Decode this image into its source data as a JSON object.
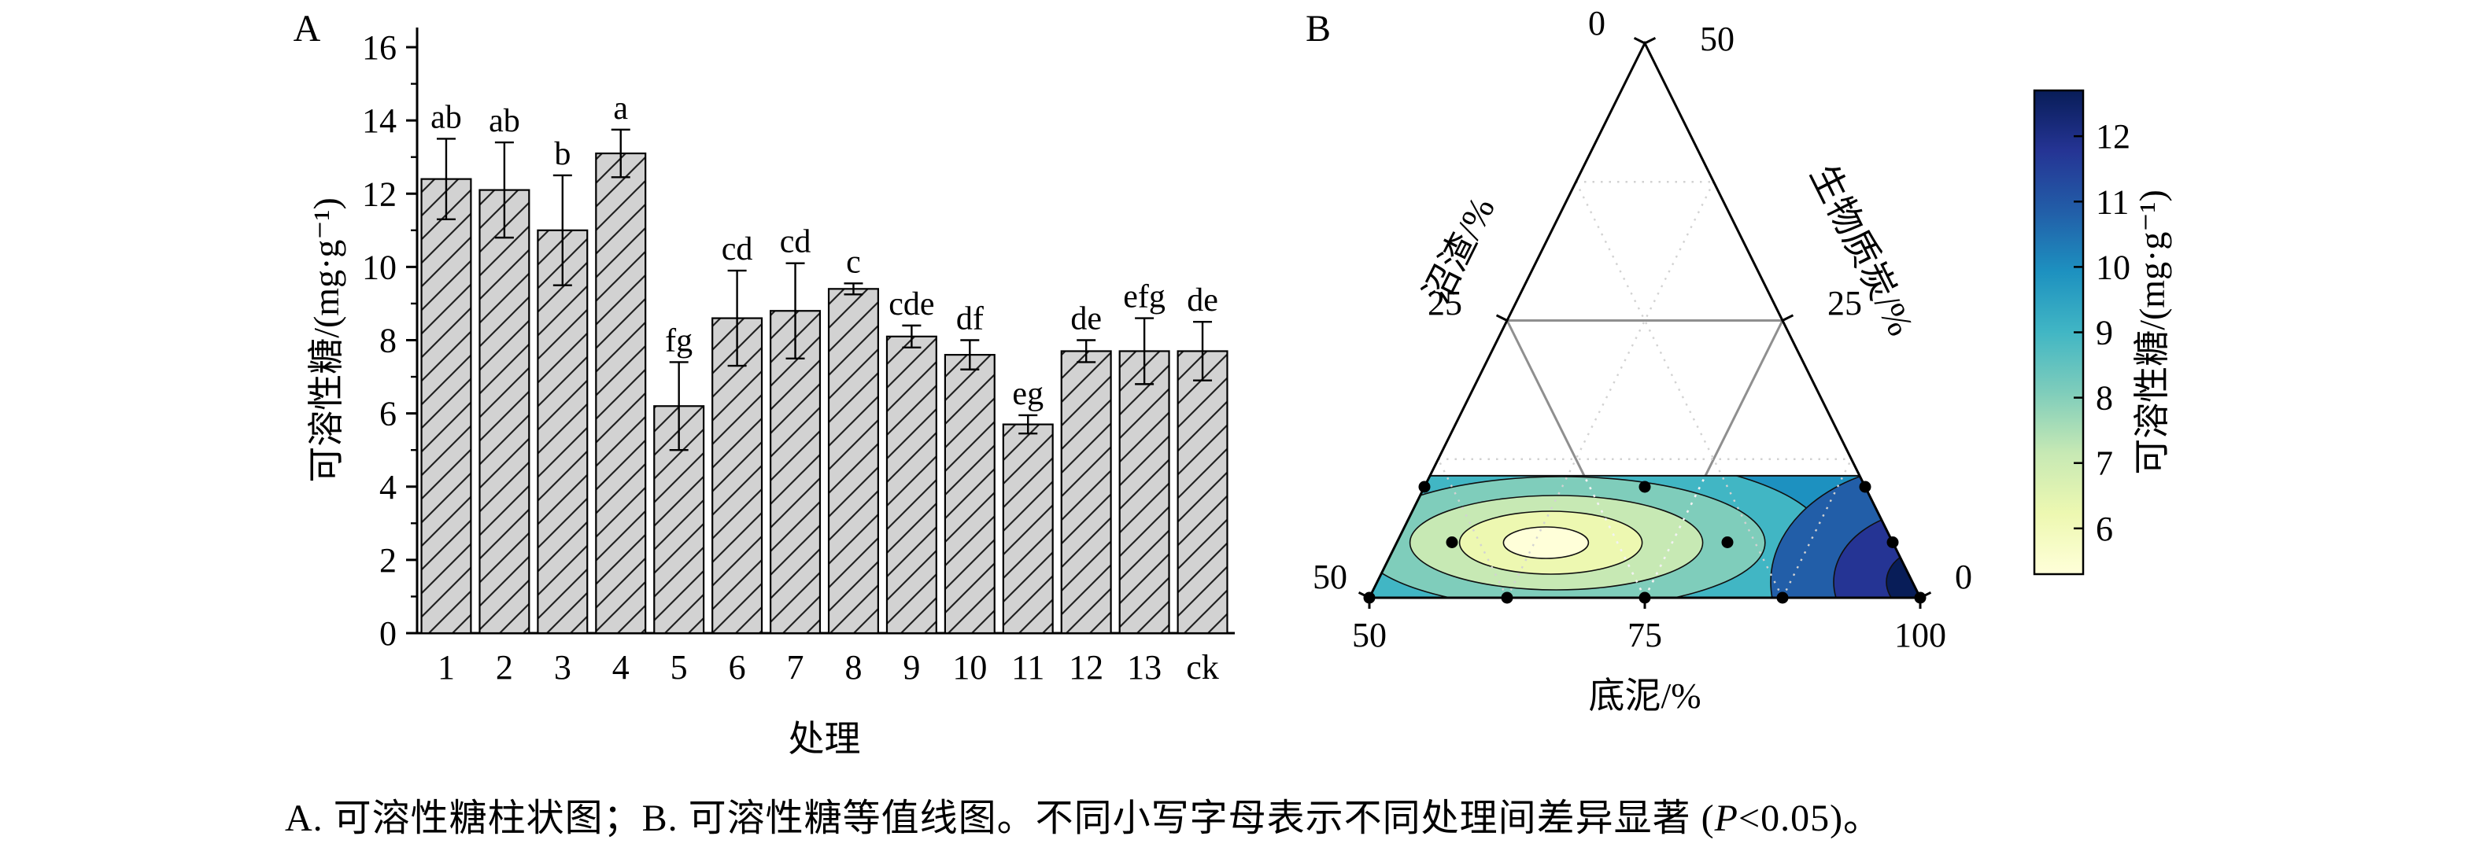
{
  "caption": {
    "part1": "A. 可溶性糖柱状图；B. 可溶性糖等值线图。不同小写字母表示不同处理间差异显著 (",
    "p_symbol": "P",
    "part2": "<0.05)。"
  },
  "chart_data": [
    {
      "type": "bar",
      "panel_label": "A",
      "xlabel": "处理",
      "ylabel": "可溶性糖/(mg·g⁻¹)",
      "ylim": [
        0,
        16
      ],
      "ytick_step": 2,
      "grid": false,
      "categories": [
        "1",
        "2",
        "3",
        "4",
        "5",
        "6",
        "7",
        "8",
        "9",
        "10",
        "11",
        "12",
        "13",
        "ck"
      ],
      "values": [
        12.4,
        12.1,
        11.0,
        13.1,
        6.2,
        8.6,
        8.8,
        9.4,
        8.1,
        7.6,
        5.7,
        7.7,
        7.7,
        7.7
      ],
      "errors": [
        1.1,
        1.3,
        1.5,
        0.65,
        1.2,
        1.3,
        1.3,
        0.15,
        0.3,
        0.4,
        0.25,
        0.3,
        0.9,
        0.8
      ],
      "sig_letters": [
        "ab",
        "ab",
        "b",
        "a",
        "fg",
        "cd",
        "cd",
        "c",
        "cde",
        "df",
        "eg",
        "de",
        "efg",
        "de"
      ],
      "bar_fill": "#d2d2d2",
      "hatch": "diagonal"
    },
    {
      "type": "ternary_contour",
      "panel_label": "B",
      "axes": {
        "left": {
          "label": "沼渣/%",
          "ticks": [
            "0",
            "25",
            "50"
          ]
        },
        "right": {
          "label": "生物质炭/%",
          "ticks": [
            "50",
            "25",
            "0"
          ]
        },
        "bottom": {
          "label": "底泥/%",
          "ticks": [
            "50",
            "75",
            "100"
          ]
        }
      },
      "colorbar": {
        "label": "可溶性糖/(mg·g⁻¹)",
        "ticks": [
          6,
          7,
          8,
          9,
          10,
          11,
          12
        ],
        "vmin": 5.3,
        "vmax": 12.7,
        "colors": [
          "#ffffd9",
          "#edf8b1",
          "#c7e9b4",
          "#7fcdbb",
          "#41b6c4",
          "#1d91c0",
          "#225ea8",
          "#253494",
          "#081d58"
        ]
      },
      "design_points": [
        [
          50,
          50,
          0
        ],
        [
          62.5,
          37.5,
          0
        ],
        [
          75,
          25,
          0
        ],
        [
          87.5,
          12.5,
          0
        ],
        [
          100,
          0,
          0
        ],
        [
          55,
          40,
          5
        ],
        [
          80,
          15,
          5
        ],
        [
          95,
          0,
          5
        ],
        [
          50,
          40,
          10
        ],
        [
          70,
          20,
          10
        ],
        [
          90,
          0,
          10
        ]
      ],
      "band_max_biochar": 11,
      "contours": {
        "base_color": "#1d91c0",
        "low_center": {
          "cx_frac": 0.36,
          "cy": 690,
          "levels": [
            {
              "rx": 330,
              "ry": 112,
              "color": "#41b6c4"
            },
            {
              "rx": 258,
              "ry": 84,
              "color": "#7fcdbb"
            },
            {
              "rx": 186,
              "ry": 60,
              "color": "#c7e9b4"
            },
            {
              "rx": 116,
              "ry": 40,
              "color": "#edf8b1"
            },
            {
              "rx": 54,
              "ry": 20,
              "color": "#ffffd9"
            }
          ]
        },
        "high_right": {
          "levels": [
            {
              "rx": 205,
              "ry": 150,
              "color": "#225ea8"
            },
            {
              "rx": 125,
              "ry": 92,
              "color": "#253494"
            },
            {
              "rx": 58,
              "ry": 44,
              "color": "#081d58"
            }
          ]
        },
        "left_corner": {
          "levels": [
            {
              "rx": 92,
              "ry": 72,
              "color": "#225ea8"
            },
            {
              "rx": 40,
              "ry": 30,
              "color": "#253494"
            }
          ]
        }
      }
    }
  ]
}
